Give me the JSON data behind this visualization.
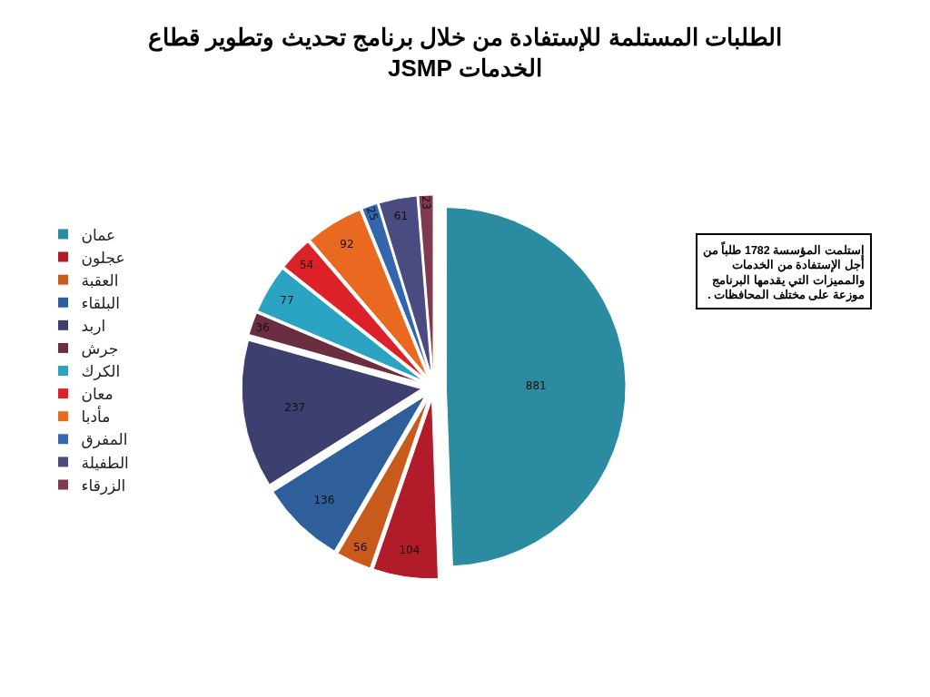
{
  "chart_data": {
    "type": "pie",
    "title": "الطلبات المستلمة للإستفادة من خلال برنامج تحديث وتطوير قطاع الخدمات JSMP",
    "categories": [
      "عمان",
      "عجلون",
      "العقبة",
      "البلقاء",
      "اربد",
      "جرش",
      "الكرك",
      "معان",
      "مأدبا",
      "المفرق",
      "الطفيلة",
      "الزرقاء"
    ],
    "values": [
      881,
      104,
      56,
      136,
      237,
      36,
      77,
      54,
      92,
      25,
      61,
      23
    ],
    "colors": [
      "#2b8ba0",
      "#b21c2a",
      "#c85a1c",
      "#2f5f9b",
      "#3d3f6e",
      "#6b2d40",
      "#2ba3c2",
      "#dc2128",
      "#e8691f",
      "#3466ad",
      "#4a4b80",
      "#7e3a50"
    ],
    "data_labels": true,
    "legend": "left",
    "annotations": [
      "إستلمت المؤسسة 1782 طلباً من أجل الإستفادة من الخدمات والمميزات التي يقدمها البرنامج موزعة على مختلف المحافظات ."
    ]
  }
}
